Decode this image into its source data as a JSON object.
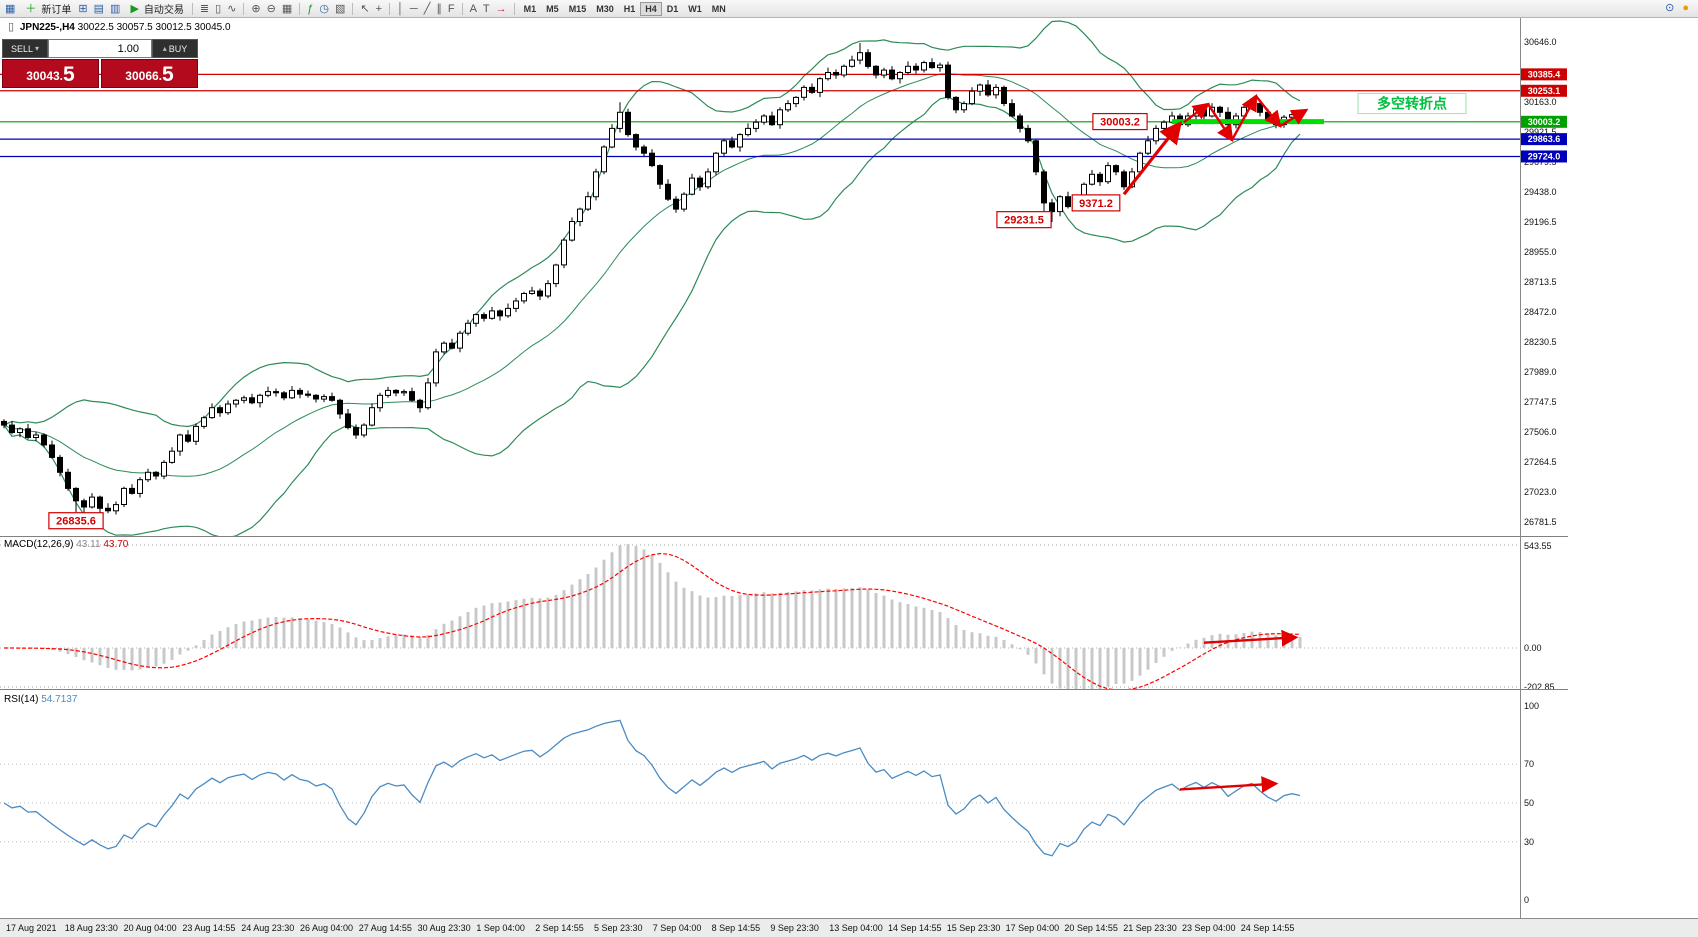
{
  "toolbar": {
    "new_order": "新订单",
    "auto_trading": "自动交易",
    "timeframes": [
      "M1",
      "M5",
      "M15",
      "M30",
      "H1",
      "H4",
      "D1",
      "W1",
      "MN"
    ],
    "active_timeframe": "H4",
    "icons": {
      "logo": "▦",
      "new_order_chart": "＋",
      "charts": "⊞",
      "profiles": "▤",
      "terminal": "▥",
      "play": "▶",
      "bars": "≣",
      "candles": "▯",
      "line_chart": "∿",
      "zoom_in": "⊕",
      "zoom_out": "⊖",
      "tile": "▦",
      "indicators": "ƒ",
      "period": "◷",
      "templates": "▧",
      "cursor": "↖",
      "crosshair": "+",
      "vline": "│",
      "hline": "─",
      "trendline": "╱",
      "channel": "∥",
      "fibonacci": "F",
      "text": "A",
      "label": "T",
      "arrows": "→",
      "caret_down": "▾",
      "caret_up": "▴",
      "search": "⊙",
      "community": "●"
    }
  },
  "symbol": {
    "title": "JPN225-,H4",
    "ohlc": "30022.5 30057.5 30012.5 30045.0"
  },
  "trade": {
    "sell_label": "SELL",
    "buy_label": "BUY",
    "volume": "1.00",
    "sell_price": "30043.5",
    "sell_main": "30043.",
    "sell_big": "5",
    "buy_price": "30066.5",
    "buy_main": "30066.",
    "buy_big": "5"
  },
  "macd": {
    "label": "MACD(12,26,9)",
    "value_main": "43.11",
    "value_signal": "43.70"
  },
  "rsi": {
    "label": "RSI(14)",
    "value": "54.7137"
  },
  "chart_data": {
    "type": "candlestick",
    "symbol": "JPN225-",
    "timeframe": "H4",
    "price_axis": {
      "labels": [
        "30646.0",
        "30404.5",
        "30163.0",
        "29921.5",
        "29679.5",
        "29438.0",
        "29196.5",
        "28955.0",
        "28713.5",
        "28472.0",
        "28230.5",
        "27989.0",
        "27747.5",
        "27506.0",
        "27264.5",
        "27023.0",
        "26781.5"
      ],
      "tags": [
        {
          "text": "30385.4",
          "price": 30385.4,
          "bg": "#cc0000"
        },
        {
          "text": "30253.1",
          "price": 30253.1,
          "bg": "#cc0000"
        },
        {
          "text": "30003.2",
          "price": 30003.2,
          "bg": "#00a000"
        },
        {
          "text": "29863.6",
          "price": 29863.6,
          "bg": "#0000bb"
        },
        {
          "text": "29724.0",
          "price": 29724.0,
          "bg": "#0000bb"
        }
      ]
    },
    "macd_axis": {
      "max": "543.55",
      "zero": "0.00",
      "min": "-202.85"
    },
    "rsi_axis": {
      "labels": [
        100,
        70,
        50,
        30,
        0
      ],
      "levels": [
        70,
        50,
        30
      ]
    },
    "time_axis": [
      "17 Aug 2021",
      "18 Aug 23:30",
      "20 Aug 04:00",
      "23 Aug 14:55",
      "24 Aug 23:30",
      "26 Aug 04:00",
      "27 Aug 14:55",
      "30 Aug 23:30",
      "1 Sep 04:00",
      "2 Sep 14:55",
      "5 Sep 23:30",
      "7 Sep 04:00",
      "8 Sep 14:55",
      "9 Sep 23:30",
      "13 Sep 04:00",
      "14 Sep 14:55",
      "15 Sep 23:30",
      "17 Sep 04:00",
      "20 Sep 14:55",
      "21 Sep 23:30",
      "23 Sep 04:00",
      "24 Sep 14:55"
    ],
    "closes": [
      27560,
      27500,
      27530,
      27460,
      27480,
      27400,
      27300,
      27180,
      27050,
      26950,
      26900,
      26980,
      26890,
      26870,
      26920,
      27050,
      27010,
      27120,
      27180,
      27150,
      27260,
      27350,
      27480,
      27430,
      27550,
      27620,
      27700,
      27660,
      27730,
      27760,
      27780,
      27740,
      27800,
      27830,
      27820,
      27780,
      27840,
      27810,
      27800,
      27770,
      27790,
      27760,
      27650,
      27540,
      27480,
      27560,
      27700,
      27800,
      27840,
      27820,
      27830,
      27760,
      27700,
      27900,
      28150,
      28220,
      28180,
      28300,
      28380,
      28450,
      28420,
      28480,
      28440,
      28500,
      28560,
      28620,
      28640,
      28600,
      28700,
      28850,
      29050,
      29200,
      29300,
      29400,
      29600,
      29800,
      29950,
      30080,
      29900,
      29800,
      29750,
      29650,
      29500,
      29380,
      29300,
      29420,
      29550,
      29480,
      29600,
      29750,
      29850,
      29800,
      29900,
      29950,
      30000,
      30050,
      29980,
      30100,
      30150,
      30200,
      30280,
      30240,
      30350,
      30400,
      30380,
      30450,
      30500,
      30560,
      30450,
      30380,
      30420,
      30350,
      30400,
      30450,
      30420,
      30480,
      30440,
      30460,
      30200,
      30100,
      30150,
      30250,
      30300,
      30220,
      30280,
      30150,
      30050,
      29950,
      29850,
      29600,
      29350,
      29280,
      29400,
      29320,
      29371,
      29500,
      29580,
      29520,
      29650,
      29600,
      29480,
      29600,
      29750,
      29850,
      29950,
      30000,
      30050,
      29980,
      30050,
      30100,
      30050,
      30120,
      30080,
      29980,
      30050,
      30120,
      30150,
      30080,
      30020,
      29980,
      30040,
      30060,
      30045
    ],
    "high_overrides": {
      "77": 30160,
      "107": 30638
    },
    "low_overrides": {
      "9": 26860,
      "10": 26836,
      "12": 26845,
      "13": 26850,
      "130": 29240,
      "131": 29195
    },
    "bollinger": {
      "period": 20,
      "deviation": 2,
      "color": "#2E8B57"
    },
    "colors": {
      "bull": "#ffffff",
      "bear": "#000000",
      "outline": "#000000",
      "macd_hist": "#c8c8c8",
      "macd_signal": "#ff0000",
      "rsi_line": "#4a8bc2",
      "annotation": "#e00000",
      "support": "#00dd00"
    },
    "annotations": {
      "price_labels": [
        {
          "text": "26835.6",
          "i": 9,
          "price": 26790
        },
        {
          "text": "29231.5",
          "i": 127.5,
          "price": 29215
        },
        {
          "text": "9371.2",
          "i": 136.5,
          "price": 29350
        },
        {
          "text": "30003.2",
          "i": 139.5,
          "price": 30005
        }
      ],
      "turning_point": {
        "text": "多空转折点",
        "i": 176,
        "price": 30150,
        "color": "#00c040"
      },
      "support_segment": {
        "i1": 146,
        "i2": 165,
        "price": 30005,
        "color": "#00dd00"
      },
      "trend_arrow": {
        "from": {
          "i": 140,
          "price": 29420
        },
        "to": {
          "i": 147,
          "price": 29990
        }
      },
      "zigzag": [
        {
          "i": 147.5,
          "price": 30000
        },
        {
          "i": 150.5,
          "price": 30146
        },
        {
          "i": 153.5,
          "price": 29856
        },
        {
          "i": 156.5,
          "price": 30211
        },
        {
          "i": 159.5,
          "price": 29969
        },
        {
          "i": 162.8,
          "price": 30098
        }
      ],
      "macd_arrow": {
        "i1": 150,
        "i2": 161.5,
        "v1": 25,
        "v2": 50
      },
      "rsi_arrow": {
        "i1": 147,
        "i2": 159,
        "v1": 57,
        "v2": 60
      }
    }
  }
}
